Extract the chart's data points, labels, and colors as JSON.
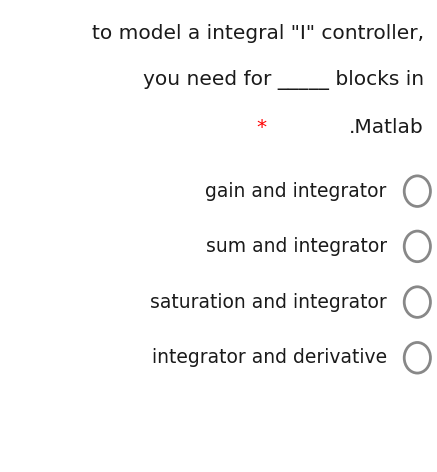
{
  "bg_color": "#ffffff",
  "title_line1": "to model a integral \"I\" controller,",
  "title_line2": "you need for _____ blocks in",
  "title_line3_star": "* ",
  "title_line3_text": ".Matlab",
  "star_color": "#ff0000",
  "text_color": "#1a1a1a",
  "options": [
    "gain and integrator",
    "sum and integrator",
    "saturation and integrator",
    "integrator and derivative"
  ],
  "circle_color": "#888888",
  "font_size_title": 14.5,
  "font_size_options": 13.5,
  "figsize": [
    4.37,
    4.72
  ],
  "dpi": 100
}
